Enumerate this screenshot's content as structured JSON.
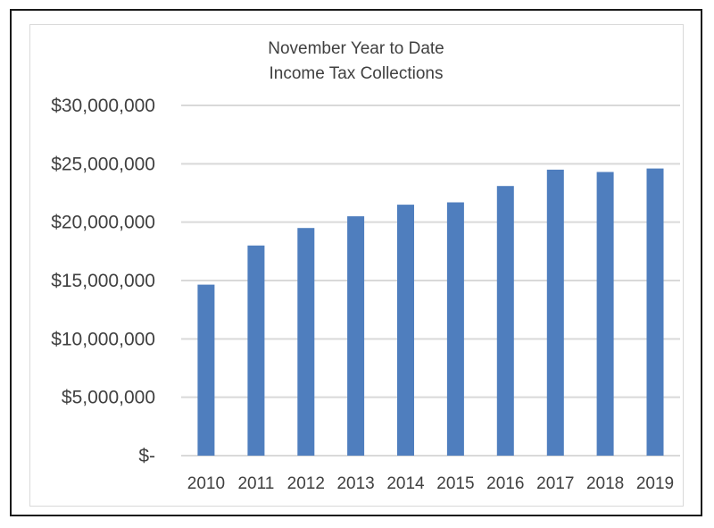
{
  "chart_data": {
    "type": "bar",
    "title_lines": [
      "November Year to Date",
      "Income Tax Collections"
    ],
    "categories": [
      "2010",
      "2011",
      "2012",
      "2013",
      "2014",
      "2015",
      "2016",
      "2017",
      "2018",
      "2019"
    ],
    "series": [
      {
        "values": [
          14650000,
          18000000,
          19500000,
          20500000,
          21500000,
          21700000,
          23100000,
          24500000,
          24300000,
          24600000
        ],
        "color": "#4f7ebe"
      }
    ],
    "y_ticks": [
      {
        "value": 0,
        "label": "$-"
      },
      {
        "value": 5000000,
        "label": "$5,000,000"
      },
      {
        "value": 10000000,
        "label": "$10,000,000"
      },
      {
        "value": 15000000,
        "label": "$15,000,000"
      },
      {
        "value": 20000000,
        "label": "$20,000,000"
      },
      {
        "value": 25000000,
        "label": "$25,000,000"
      },
      {
        "value": 30000000,
        "label": "$30,000,000"
      }
    ],
    "ylim": [
      0,
      30000000
    ],
    "grid": true,
    "legend": "none",
    "xlabel": "",
    "ylabel": ""
  },
  "colors": {
    "bar": "#4f7ebe",
    "grid": "#d9d9d9",
    "text": "#404040"
  }
}
